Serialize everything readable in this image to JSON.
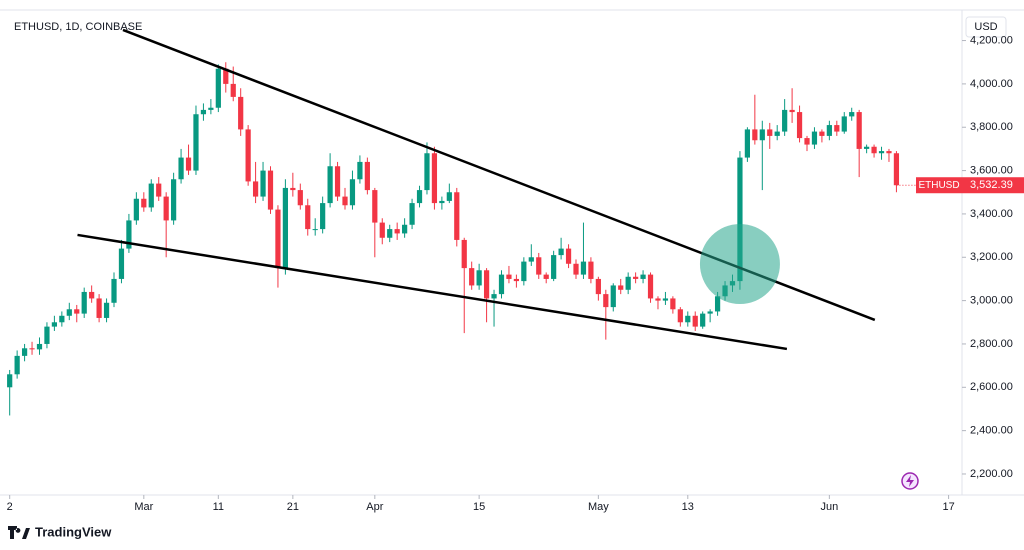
{
  "chart_data": {
    "type": "candlestick",
    "title": "ETHUSD, 1D, COINBASE",
    "currency_button": "USD",
    "brand": "TradingView",
    "up_color": "#089981",
    "down_color": "#f23645",
    "ohlc": [
      [
        2600,
        2680,
        2470,
        2660
      ],
      [
        2660,
        2770,
        2640,
        2745
      ],
      [
        2745,
        2800,
        2720,
        2780
      ],
      [
        2780,
        2810,
        2750,
        2775
      ],
      [
        2775,
        2830,
        2750,
        2800
      ],
      [
        2800,
        2900,
        2780,
        2880
      ],
      [
        2880,
        2930,
        2860,
        2900
      ],
      [
        2900,
        2950,
        2880,
        2930
      ],
      [
        2930,
        2990,
        2910,
        2960
      ],
      [
        2960,
        2980,
        2900,
        2940
      ],
      [
        2940,
        3060,
        2920,
        3040
      ],
      [
        3040,
        3070,
        2990,
        3010
      ],
      [
        3010,
        3030,
        2900,
        2920
      ],
      [
        2920,
        3010,
        2900,
        2990
      ],
      [
        2990,
        3130,
        2970,
        3100
      ],
      [
        3100,
        3280,
        3080,
        3240
      ],
      [
        3240,
        3400,
        3220,
        3370
      ],
      [
        3370,
        3500,
        3350,
        3470
      ],
      [
        3470,
        3500,
        3410,
        3430
      ],
      [
        3430,
        3560,
        3410,
        3540
      ],
      [
        3540,
        3570,
        3460,
        3480
      ],
      [
        3480,
        3500,
        3200,
        3370
      ],
      [
        3370,
        3590,
        3350,
        3560
      ],
      [
        3560,
        3700,
        3540,
        3660
      ],
      [
        3660,
        3720,
        3580,
        3600
      ],
      [
        3600,
        3900,
        3580,
        3860
      ],
      [
        3860,
        3910,
        3830,
        3880
      ],
      [
        3880,
        3930,
        3860,
        3890
      ],
      [
        3890,
        4090,
        3870,
        4070
      ],
      [
        4070,
        4100,
        3960,
        4000
      ],
      [
        4000,
        4080,
        3920,
        3940
      ],
      [
        3940,
        3980,
        3760,
        3790
      ],
      [
        3790,
        3810,
        3530,
        3550
      ],
      [
        3550,
        3640,
        3450,
        3480
      ],
      [
        3480,
        3640,
        3460,
        3600
      ],
      [
        3600,
        3620,
        3400,
        3420
      ],
      [
        3420,
        3440,
        3060,
        3150
      ],
      [
        3150,
        3560,
        3120,
        3520
      ],
      [
        3520,
        3590,
        3480,
        3510
      ],
      [
        3510,
        3540,
        3420,
        3440
      ],
      [
        3440,
        3470,
        3300,
        3330
      ],
      [
        3330,
        3380,
        3300,
        3330
      ],
      [
        3330,
        3480,
        3310,
        3450
      ],
      [
        3450,
        3680,
        3430,
        3620
      ],
      [
        3620,
        3640,
        3460,
        3480
      ],
      [
        3480,
        3520,
        3420,
        3440
      ],
      [
        3440,
        3600,
        3420,
        3560
      ],
      [
        3560,
        3670,
        3540,
        3640
      ],
      [
        3640,
        3660,
        3490,
        3510
      ],
      [
        3510,
        3520,
        3200,
        3360
      ],
      [
        3360,
        3380,
        3260,
        3290
      ],
      [
        3290,
        3350,
        3270,
        3330
      ],
      [
        3330,
        3360,
        3280,
        3310
      ],
      [
        3310,
        3380,
        3290,
        3350
      ],
      [
        3350,
        3470,
        3330,
        3450
      ],
      [
        3450,
        3530,
        3430,
        3510
      ],
      [
        3510,
        3730,
        3490,
        3680
      ],
      [
        3680,
        3710,
        3420,
        3450
      ],
      [
        3450,
        3480,
        3420,
        3460
      ],
      [
        3460,
        3540,
        3450,
        3500
      ],
      [
        3500,
        3520,
        3250,
        3280
      ],
      [
        3280,
        3290,
        2850,
        3150
      ],
      [
        3150,
        3180,
        3050,
        3070
      ],
      [
        3070,
        3170,
        3050,
        3140
      ],
      [
        3140,
        3150,
        2900,
        3010
      ],
      [
        3010,
        3050,
        2880,
        3030
      ],
      [
        3030,
        3140,
        3010,
        3120
      ],
      [
        3120,
        3160,
        3080,
        3100
      ],
      [
        3100,
        3120,
        3060,
        3090
      ],
      [
        3090,
        3200,
        3070,
        3180
      ],
      [
        3180,
        3260,
        3160,
        3200
      ],
      [
        3200,
        3220,
        3100,
        3120
      ],
      [
        3120,
        3130,
        3080,
        3100
      ],
      [
        3100,
        3230,
        3090,
        3210
      ],
      [
        3210,
        3290,
        3190,
        3240
      ],
      [
        3240,
        3260,
        3150,
        3170
      ],
      [
        3170,
        3190,
        3100,
        3120
      ],
      [
        3120,
        3360,
        3100,
        3180
      ],
      [
        3180,
        3200,
        3080,
        3100
      ],
      [
        3100,
        3110,
        3000,
        3030
      ],
      [
        3030,
        3050,
        2820,
        2970
      ],
      [
        2970,
        3080,
        2950,
        3070
      ],
      [
        3070,
        3100,
        3030,
        3050
      ],
      [
        3050,
        3130,
        3030,
        3110
      ],
      [
        3110,
        3130,
        3080,
        3100
      ],
      [
        3100,
        3140,
        3080,
        3120
      ],
      [
        3120,
        3130,
        2990,
        3010
      ],
      [
        3010,
        3020,
        2960,
        3000
      ],
      [
        3000,
        3040,
        2980,
        3010
      ],
      [
        3010,
        3020,
        2940,
        2960
      ],
      [
        2960,
        2970,
        2880,
        2900
      ],
      [
        2900,
        2950,
        2880,
        2930
      ],
      [
        2930,
        2950,
        2860,
        2880
      ],
      [
        2880,
        2950,
        2870,
        2940
      ],
      [
        2940,
        2960,
        2900,
        2950
      ],
      [
        2950,
        3040,
        2930,
        3020
      ],
      [
        3020,
        3090,
        3000,
        3070
      ],
      [
        3070,
        3120,
        3040,
        3090
      ],
      [
        3090,
        3690,
        3050,
        3660
      ],
      [
        3660,
        3800,
        3640,
        3790
      ],
      [
        3790,
        3950,
        3720,
        3740
      ],
      [
        3740,
        3830,
        3510,
        3790
      ],
      [
        3790,
        3820,
        3700,
        3760
      ],
      [
        3760,
        3810,
        3740,
        3780
      ],
      [
        3780,
        3930,
        3760,
        3880
      ],
      [
        3880,
        3980,
        3820,
        3870
      ],
      [
        3870,
        3900,
        3730,
        3750
      ],
      [
        3750,
        3760,
        3690,
        3720
      ],
      [
        3720,
        3800,
        3700,
        3780
      ],
      [
        3780,
        3790,
        3730,
        3760
      ],
      [
        3760,
        3830,
        3740,
        3810
      ],
      [
        3810,
        3830,
        3760,
        3780
      ],
      [
        3780,
        3870,
        3770,
        3850
      ],
      [
        3850,
        3890,
        3830,
        3870
      ],
      [
        3870,
        3880,
        3570,
        3700
      ],
      [
        3700,
        3720,
        3680,
        3710
      ],
      [
        3710,
        3720,
        3660,
        3680
      ],
      [
        3680,
        3710,
        3650,
        3690
      ],
      [
        3690,
        3700,
        3640,
        3680
      ],
      [
        3680,
        3690,
        3500,
        3532.39
      ]
    ],
    "last_price_label": {
      "symbol": "ETHUSD",
      "label": "3,532.39"
    },
    "trend_lines": [
      {
        "x": [
          15.2,
          116.1
        ],
        "y": [
          4249,
          2911
        ]
      },
      {
        "x": [
          9.1,
          104.3
        ],
        "y": [
          3303,
          2777
        ]
      }
    ],
    "highlight": {
      "x": 98,
      "y": 3169
    },
    "xlim": [
      -1.3,
      127.8
    ],
    "xticks": [
      {
        "value": 0,
        "label": "2"
      },
      {
        "value": 18,
        "label": "Mar"
      },
      {
        "value": 28,
        "label": "11"
      },
      {
        "value": 38,
        "label": "21"
      },
      {
        "value": 49,
        "label": "Apr"
      },
      {
        "value": 63,
        "label": "15"
      },
      {
        "value": 79,
        "label": "May"
      },
      {
        "value": 91,
        "label": "13"
      },
      {
        "value": 110,
        "label": "Jun"
      },
      {
        "value": 126,
        "label": "17"
      }
    ],
    "ylim": [
      2103,
      4341
    ],
    "yticks": [
      {
        "value": 2200,
        "label": "2,200.00"
      },
      {
        "value": 2400,
        "label": "2,400.00"
      },
      {
        "value": 2600,
        "label": "2,600.00"
      },
      {
        "value": 2800,
        "label": "2,800.00"
      },
      {
        "value": 3000,
        "label": "3,000.00"
      },
      {
        "value": 3200,
        "label": "3,200.00"
      },
      {
        "value": 3400,
        "label": "3,400.00"
      },
      {
        "value": 3600,
        "label": "3,600.00"
      },
      {
        "value": 3800,
        "label": "3,800.00"
      },
      {
        "value": 4000,
        "label": "4,000.00"
      },
      {
        "value": 4200,
        "label": "4,200.00"
      }
    ]
  }
}
